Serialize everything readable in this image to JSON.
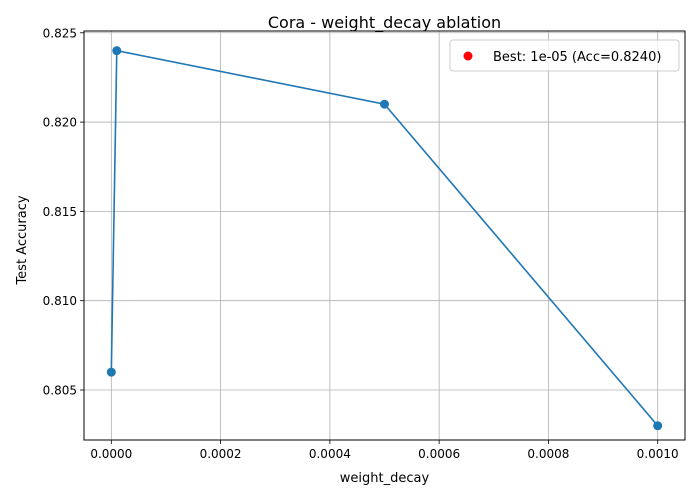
{
  "chart_data": {
    "type": "line",
    "title": "Cora - weight_decay ablation",
    "xlabel": "weight_decay",
    "ylabel": "Test Accuracy",
    "xlim": [
      -5e-05,
      0.00105
    ],
    "ylim": [
      0.8022,
      0.8251
    ],
    "xticks": [
      0.0,
      0.0002,
      0.0004,
      0.0006,
      0.0008,
      0.001
    ],
    "xtick_labels": [
      "0.0000",
      "0.0002",
      "0.0004",
      "0.0006",
      "0.0008",
      "0.0010"
    ],
    "yticks": [
      0.805,
      0.81,
      0.815,
      0.82,
      0.825
    ],
    "ytick_labels": [
      "0.805",
      "0.810",
      "0.815",
      "0.820",
      "0.825"
    ],
    "grid": true,
    "legend_position": "top-right",
    "series": [
      {
        "name": "",
        "color": "#1f77b4",
        "x": [
          0.0,
          1e-05,
          0.0005,
          0.001
        ],
        "y": [
          0.806,
          0.824,
          0.821,
          0.803
        ]
      }
    ],
    "highlight": {
      "label": "Best: 1e-05 (Acc=0.8240)",
      "x": 1e-05,
      "y": 0.824,
      "color": "#ff0000"
    }
  }
}
